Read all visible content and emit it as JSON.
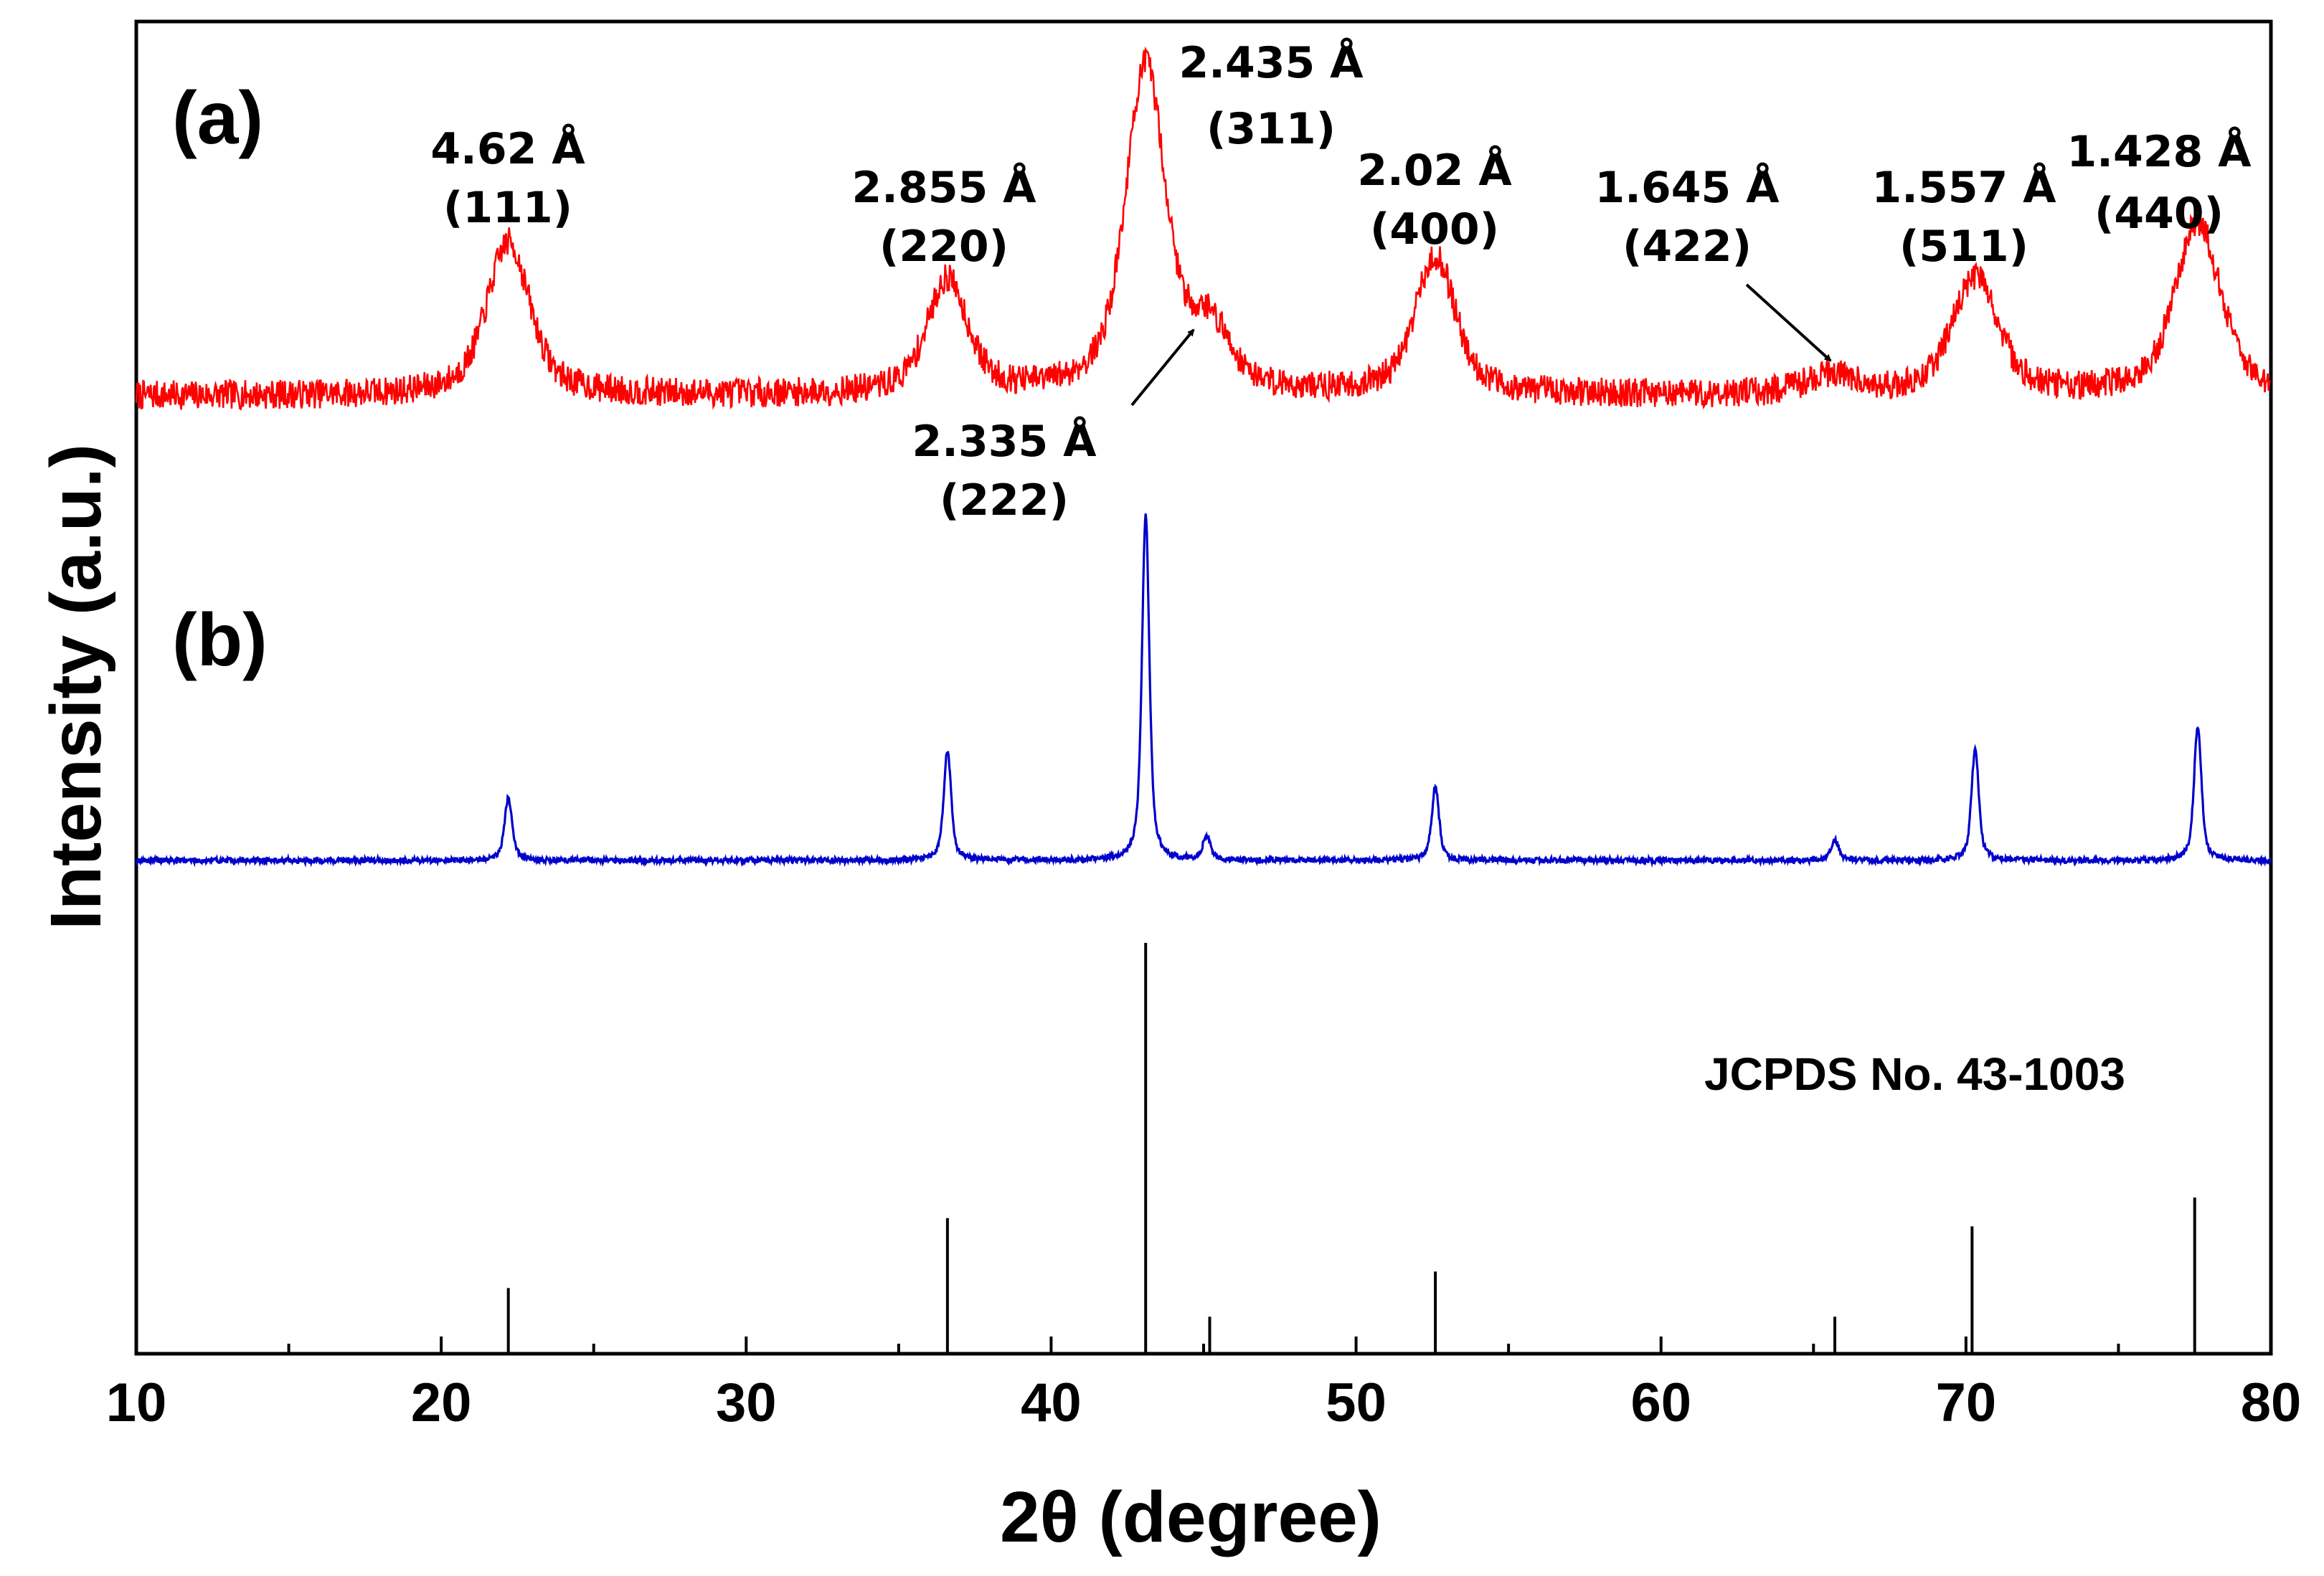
{
  "chart_data": {
    "type": "line",
    "xlabel": "2θ (degree)",
    "ylabel": "Intensity (a.u.)",
    "xlim": [
      10,
      80
    ],
    "x_ticks": [
      "10",
      "20",
      "30",
      "40",
      "50",
      "60",
      "70",
      "80"
    ],
    "series": [
      {
        "name": "(a)",
        "label": "(a)",
        "color": "#ff0000",
        "baseline": 0.05,
        "noise": 0.045,
        "peaks": [
          {
            "x": 22.2,
            "height": 0.47,
            "width": 1.7
          },
          {
            "x": 36.6,
            "height": 0.35,
            "width": 1.6
          },
          {
            "x": 43.1,
            "height": 1.0,
            "width": 1.6
          },
          {
            "x": 45.2,
            "height": 0.18,
            "width": 1.6
          },
          {
            "x": 52.6,
            "height": 0.42,
            "width": 1.6
          },
          {
            "x": 65.6,
            "height": 0.06,
            "width": 2.0
          },
          {
            "x": 70.3,
            "height": 0.36,
            "width": 1.8
          },
          {
            "x": 77.6,
            "height": 0.53,
            "width": 1.8
          }
        ]
      },
      {
        "name": "(b)",
        "label": "(b)",
        "color": "#0000cc",
        "baseline": 0.0,
        "noise": 0.008,
        "peaks": [
          {
            "x": 22.2,
            "height": 0.18,
            "width": 0.34
          },
          {
            "x": 36.6,
            "height": 0.32,
            "width": 0.32
          },
          {
            "x": 43.1,
            "height": 1.0,
            "width": 0.32
          },
          {
            "x": 45.1,
            "height": 0.07,
            "width": 0.32
          },
          {
            "x": 52.6,
            "height": 0.21,
            "width": 0.32
          },
          {
            "x": 65.7,
            "height": 0.06,
            "width": 0.34
          },
          {
            "x": 70.3,
            "height": 0.32,
            "width": 0.32
          },
          {
            "x": 77.6,
            "height": 0.39,
            "width": 0.32
          }
        ]
      },
      {
        "name": "JCPDS No. 43-1003",
        "type": "stick",
        "color": "#000000",
        "x": [
          22.2,
          36.6,
          43.1,
          45.2,
          52.6,
          65.7,
          70.2,
          77.5
        ],
        "values": [
          16,
          33,
          100,
          9,
          20,
          9,
          31,
          38
        ]
      }
    ],
    "annotations": [
      {
        "d": "4.62 Å",
        "hkl": "(111)",
        "peak_x": 22.2
      },
      {
        "d": "2.855 Å",
        "hkl": "(220)",
        "peak_x": 36.6
      },
      {
        "d": "2.435 Å",
        "hkl": "(311)",
        "peak_x": 43.1
      },
      {
        "d": "2.335 Å",
        "hkl": "(222)",
        "peak_x": 45.2,
        "arrow": true
      },
      {
        "d": "2.02 Å",
        "hkl": "(400)",
        "peak_x": 52.6
      },
      {
        "d": "1.645 Å",
        "hkl": "(422)",
        "peak_x": 65.6,
        "arrow": true
      },
      {
        "d": "1.557 Å",
        "hkl": "(511)",
        "peak_x": 70.3
      },
      {
        "d": "1.428 Å",
        "hkl": "(440)",
        "peak_x": 77.6
      }
    ],
    "reference_label": "JCPDS No. 43-1003",
    "grid": false
  }
}
